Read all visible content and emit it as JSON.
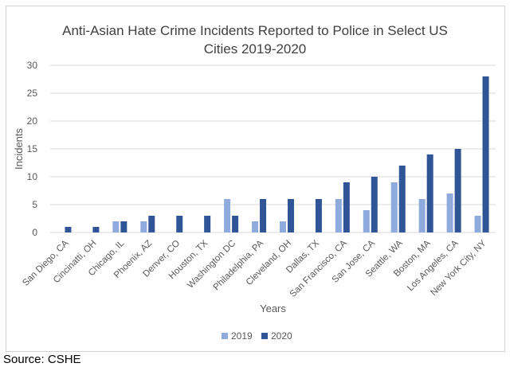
{
  "chart_data": {
    "type": "bar",
    "title_lines": [
      "Anti-Asian Hate Crime Incidents Reported to Police in Select US",
      "Cities 2019-2020"
    ],
    "xlabel": "Years",
    "ylabel": "Incidents",
    "ylim": [
      0,
      30
    ],
    "yticks": [
      0,
      5,
      10,
      15,
      20,
      25,
      30
    ],
    "grid": true,
    "legend_position": "bottom",
    "categories": [
      "San Diego, CA",
      "Cincinatti, OH",
      "Chicago, IL",
      "Phoenix, AZ",
      "Denver, CO",
      "Houston, TX",
      "Washington DC",
      "Philadelphia, PA",
      "Cleveland, OH",
      "Dallas, TX",
      "San Francisco, CA",
      "San Jose, CA",
      "Seattle, WA",
      "Boston, MA",
      "Los Angeles, CA",
      "New York City, NY"
    ],
    "series": [
      {
        "name": "2019",
        "color": "#8faadc",
        "values": [
          0,
          0,
          2,
          2,
          0,
          0,
          6,
          2,
          2,
          0,
          6,
          4,
          9,
          6,
          7,
          3
        ]
      },
      {
        "name": "2020",
        "color": "#2f5597",
        "values": [
          1,
          1,
          2,
          3,
          3,
          3,
          3,
          6,
          6,
          6,
          9,
          10,
          12,
          14,
          15,
          28
        ]
      }
    ]
  },
  "source": "Source: CSHE"
}
